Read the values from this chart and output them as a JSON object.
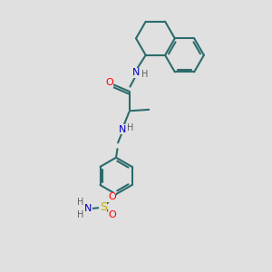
{
  "bg_color": "#e0e0e0",
  "bond_color": "#2d6b6b",
  "bond_width": 1.5,
  "atom_colors": {
    "O": "#ff0000",
    "N": "#0000cd",
    "S": "#ccaa00",
    "H": "#606060",
    "C": "#2d6b6b"
  },
  "figsize": [
    3.0,
    3.0
  ],
  "dpi": 100
}
